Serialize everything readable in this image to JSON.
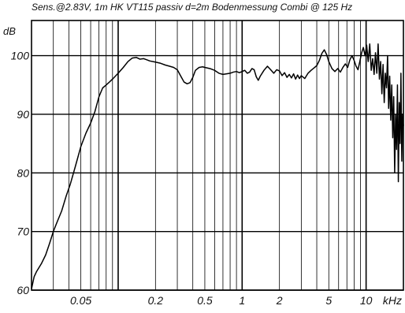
{
  "chart_data": {
    "type": "line",
    "title": "Sens.@2.83V, 1m HK VT115 passiv d=2m Bodenmessung Combi @ 125 Hz",
    "xlabel": "kHz",
    "ylabel": "dB",
    "xscale": "log",
    "xlim": [
      0.02,
      20
    ],
    "ylim": [
      60,
      106
    ],
    "grid": true,
    "x_tick_labels": [
      {
        "value": 0.05,
        "label": "0.05"
      },
      {
        "value": 0.2,
        "label": "0.2"
      },
      {
        "value": 0.5,
        "label": "0.5"
      },
      {
        "value": 1,
        "label": "1"
      },
      {
        "value": 2,
        "label": "2"
      },
      {
        "value": 5,
        "label": "5"
      },
      {
        "value": 10,
        "label": "10"
      }
    ],
    "y_tick_labels": [
      {
        "value": 60,
        "label": "60"
      },
      {
        "value": 70,
        "label": "70"
      },
      {
        "value": 80,
        "label": "80"
      },
      {
        "value": 90,
        "label": "90"
      },
      {
        "value": 100,
        "label": "100"
      }
    ],
    "series": [
      {
        "color": "#000000",
        "points": [
          [
            0.02,
            60.2
          ],
          [
            0.021,
            62.3
          ],
          [
            0.022,
            63.2
          ],
          [
            0.024,
            64.5
          ],
          [
            0.026,
            66.0
          ],
          [
            0.028,
            68.0
          ],
          [
            0.03,
            70.0
          ],
          [
            0.032,
            71.5
          ],
          [
            0.035,
            73.5
          ],
          [
            0.038,
            76.0
          ],
          [
            0.041,
            78.0
          ],
          [
            0.045,
            81.0
          ],
          [
            0.05,
            84.5
          ],
          [
            0.055,
            86.8
          ],
          [
            0.06,
            88.5
          ],
          [
            0.065,
            90.5
          ],
          [
            0.07,
            93.0
          ],
          [
            0.075,
            94.5
          ],
          [
            0.08,
            95.0
          ],
          [
            0.085,
            95.5
          ],
          [
            0.09,
            96.0
          ],
          [
            0.1,
            97.0
          ],
          [
            0.11,
            98.0
          ],
          [
            0.12,
            99.0
          ],
          [
            0.13,
            99.6
          ],
          [
            0.14,
            99.7
          ],
          [
            0.15,
            99.4
          ],
          [
            0.16,
            99.5
          ],
          [
            0.17,
            99.3
          ],
          [
            0.18,
            99.1
          ],
          [
            0.2,
            98.9
          ],
          [
            0.22,
            98.7
          ],
          [
            0.24,
            98.4
          ],
          [
            0.26,
            98.2
          ],
          [
            0.28,
            98.0
          ],
          [
            0.3,
            97.6
          ],
          [
            0.32,
            96.5
          ],
          [
            0.34,
            95.5
          ],
          [
            0.36,
            95.2
          ],
          [
            0.38,
            95.4
          ],
          [
            0.4,
            96.3
          ],
          [
            0.42,
            97.5
          ],
          [
            0.45,
            98.0
          ],
          [
            0.48,
            98.1
          ],
          [
            0.5,
            98.0
          ],
          [
            0.55,
            97.8
          ],
          [
            0.6,
            97.5
          ],
          [
            0.65,
            97.0
          ],
          [
            0.7,
            96.8
          ],
          [
            0.75,
            96.9
          ],
          [
            0.8,
            97.0
          ],
          [
            0.85,
            97.2
          ],
          [
            0.9,
            97.3
          ],
          [
            0.95,
            97.1
          ],
          [
            1.0,
            97.3
          ],
          [
            1.05,
            97.5
          ],
          [
            1.1,
            97.0
          ],
          [
            1.15,
            97.2
          ],
          [
            1.2,
            97.8
          ],
          [
            1.25,
            97.6
          ],
          [
            1.3,
            96.4
          ],
          [
            1.35,
            95.8
          ],
          [
            1.4,
            96.5
          ],
          [
            1.5,
            97.5
          ],
          [
            1.6,
            98.2
          ],
          [
            1.7,
            97.6
          ],
          [
            1.8,
            97.0
          ],
          [
            1.9,
            97.6
          ],
          [
            2.0,
            97.4
          ],
          [
            2.1,
            96.6
          ],
          [
            2.2,
            97.1
          ],
          [
            2.3,
            96.3
          ],
          [
            2.4,
            96.8
          ],
          [
            2.5,
            96.2
          ],
          [
            2.6,
            96.9
          ],
          [
            2.7,
            96.0
          ],
          [
            2.8,
            96.7
          ],
          [
            2.9,
            96.1
          ],
          [
            3.0,
            96.6
          ],
          [
            3.2,
            96.1
          ],
          [
            3.4,
            97.0
          ],
          [
            3.6,
            97.5
          ],
          [
            3.8,
            97.9
          ],
          [
            4.0,
            98.3
          ],
          [
            4.2,
            99.2
          ],
          [
            4.4,
            100.4
          ],
          [
            4.6,
            101.0
          ],
          [
            4.8,
            100.2
          ],
          [
            5.0,
            99.0
          ],
          [
            5.3,
            97.8
          ],
          [
            5.6,
            97.3
          ],
          [
            5.9,
            97.8
          ],
          [
            6.2,
            97.2
          ],
          [
            6.5,
            98.0
          ],
          [
            6.8,
            98.6
          ],
          [
            7.1,
            98.0
          ],
          [
            7.4,
            99.3
          ],
          [
            7.7,
            100.0
          ],
          [
            8.0,
            99.2
          ],
          [
            8.3,
            98.2
          ],
          [
            8.6,
            97.6
          ],
          [
            8.9,
            99.0
          ],
          [
            9.2,
            100.5
          ],
          [
            9.5,
            101.4
          ],
          [
            9.8,
            100.0
          ],
          [
            10.1,
            101.8
          ],
          [
            10.4,
            99.0
          ],
          [
            10.7,
            102.0
          ],
          [
            11.0,
            97.5
          ],
          [
            11.3,
            99.5
          ],
          [
            11.6,
            96.8
          ],
          [
            11.9,
            100.5
          ],
          [
            12.2,
            97.0
          ],
          [
            12.5,
            102.0
          ],
          [
            12.8,
            96.0
          ],
          [
            13.1,
            99.0
          ],
          [
            13.4,
            93.5
          ],
          [
            13.7,
            98.5
          ],
          [
            14.0,
            92.0
          ],
          [
            14.3,
            97.0
          ],
          [
            14.6,
            94.5
          ],
          [
            14.9,
            100.0
          ],
          [
            15.2,
            91.0
          ],
          [
            15.5,
            96.5
          ],
          [
            15.8,
            89.0
          ],
          [
            16.1,
            95.0
          ],
          [
            16.4,
            86.0
          ],
          [
            16.7,
            93.0
          ],
          [
            17.0,
            80.0
          ],
          [
            17.3,
            90.0
          ],
          [
            17.6,
            84.0
          ],
          [
            17.9,
            95.0
          ],
          [
            18.2,
            78.5
          ],
          [
            18.5,
            92.0
          ],
          [
            18.8,
            85.0
          ],
          [
            19.1,
            97.0
          ],
          [
            19.4,
            82.0
          ],
          [
            19.7,
            90.0
          ],
          [
            20.0,
            88.0
          ]
        ]
      }
    ]
  }
}
